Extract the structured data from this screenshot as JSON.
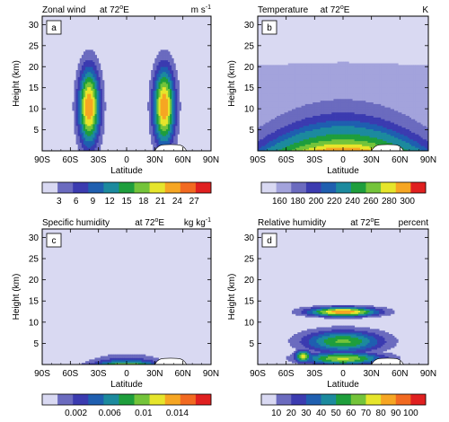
{
  "chart_data": [
    {
      "type": "heatmap",
      "panel_letter": "a",
      "title": "Zonal wind",
      "subtitle": "at 72",
      "subtitle_sup": "o",
      "subtitle_tail": "E",
      "units": "m s",
      "units_sup": "-1",
      "xlabel": "Latitude",
      "ylabel": "Height (km)",
      "x_ticks": [
        "90S",
        "60S",
        "30S",
        "0",
        "30N",
        "60N",
        "90N"
      ],
      "y_ticks": [
        "5",
        "10",
        "15",
        "20",
        "25",
        "30"
      ],
      "xlim": [
        -90,
        90
      ],
      "ylim": [
        0,
        32
      ],
      "colorbar_ticks": [
        "3",
        "6",
        "9",
        "12",
        "15",
        "18",
        "21",
        "24",
        "27"
      ],
      "colorbar_colors": [
        "#d9d9f2",
        "#6b6bbf",
        "#3b3bb0",
        "#1f5fb0",
        "#1c8a9e",
        "#1e9e3c",
        "#74c43a",
        "#e6e52b",
        "#f6a623",
        "#f26a21",
        "#e02020"
      ],
      "features": {
        "jet_centers": [
          [
            -40,
            10.5
          ],
          [
            40,
            10.5
          ]
        ],
        "jet_max": 27,
        "terrain": {
          "center_lat": 47,
          "half_width_deg": 17,
          "height_km": 1.5
        }
      }
    },
    {
      "type": "heatmap",
      "panel_letter": "b",
      "title": "Temperature",
      "subtitle": "at 72",
      "subtitle_sup": "o",
      "subtitle_tail": "E",
      "units": "K",
      "units_sup": "",
      "xlabel": "Latitude",
      "ylabel": "Height (km)",
      "x_ticks": [
        "90S",
        "60S",
        "30S",
        "0",
        "30N",
        "60N",
        "90N"
      ],
      "y_ticks": [
        "5",
        "10",
        "15",
        "20",
        "25",
        "30"
      ],
      "xlim": [
        -90,
        90
      ],
      "ylim": [
        0,
        32
      ],
      "colorbar_ticks": [
        "160",
        "180",
        "200",
        "220",
        "240",
        "260",
        "280",
        "300"
      ],
      "colorbar_colors": [
        "#d9d9f2",
        "#a3a3dc",
        "#6b6bbf",
        "#3b3bb0",
        "#1f5fb0",
        "#1c8a9e",
        "#1e9e3c",
        "#74c43a",
        "#e6e52b",
        "#f6a623",
        "#e02020"
      ],
      "features": {
        "surface_max_K": 300,
        "top_min_K": 160,
        "terrain": {
          "center_lat": 47,
          "half_width_deg": 17,
          "height_km": 1.5
        }
      }
    },
    {
      "type": "heatmap",
      "panel_letter": "c",
      "title": "Specific humidity",
      "subtitle": "at 72",
      "subtitle_sup": "o",
      "subtitle_tail": "E",
      "units": "kg kg",
      "units_sup": "-1",
      "xlabel": "Latitude",
      "ylabel": "Height (km)",
      "x_ticks": [
        "90S",
        "60S",
        "30S",
        "0",
        "30N",
        "60N",
        "90N"
      ],
      "y_ticks": [
        "5",
        "10",
        "15",
        "20",
        "25",
        "30"
      ],
      "xlim": [
        -90,
        90
      ],
      "ylim": [
        0,
        32
      ],
      "colorbar_ticks": [
        "0.002",
        "0.006",
        "0.01",
        "0.014"
      ],
      "colorbar_colors": [
        "#d9d9f2",
        "#6b6bbf",
        "#3b3bb0",
        "#1f5fb0",
        "#1c8a9e",
        "#1e9e3c",
        "#74c43a",
        "#e6e52b",
        "#f6a623",
        "#f26a21",
        "#e02020"
      ],
      "features": {
        "max_value": 0.016,
        "terrain": {
          "center_lat": 47,
          "half_width_deg": 17,
          "height_km": 1.5
        }
      }
    },
    {
      "type": "heatmap",
      "panel_letter": "d",
      "title": "Relative humidity",
      "subtitle": "at 72",
      "subtitle_sup": "o",
      "subtitle_tail": "E",
      "units": "percent",
      "units_sup": "",
      "xlabel": "Latitude",
      "ylabel": "Height (km)",
      "x_ticks": [
        "90S",
        "60S",
        "30S",
        "0",
        "30N",
        "60N",
        "90N"
      ],
      "y_ticks": [
        "5",
        "10",
        "15",
        "20",
        "25",
        "30"
      ],
      "xlim": [
        -90,
        90
      ],
      "ylim": [
        0,
        32
      ],
      "colorbar_ticks": [
        "10",
        "20",
        "30",
        "40",
        "50",
        "60",
        "70",
        "80",
        "90",
        "100"
      ],
      "colorbar_colors": [
        "#d9d9f2",
        "#6b6bbf",
        "#3b3bb0",
        "#1f5fb0",
        "#1c8a9e",
        "#1e9e3c",
        "#74c43a",
        "#e6e52b",
        "#f6a623",
        "#f26a21",
        "#e02020"
      ],
      "features": {
        "cloud_top_km": 14,
        "terrain": {
          "center_lat": 47,
          "half_width_deg": 17,
          "height_km": 1.5
        }
      }
    }
  ]
}
